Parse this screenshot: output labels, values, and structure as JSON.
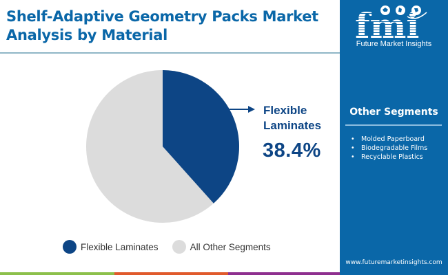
{
  "header": {
    "title": "Shelf-Adaptive Geometry Packs Market Analysis by Material"
  },
  "brand": {
    "logo_letters": "fmi",
    "name": "Future Market Insights",
    "url": "www.futuremarketinsights.com",
    "panel_color": "#0a67a8"
  },
  "side_panel": {
    "title": "Other Segments",
    "items": [
      "Molded Paperboard",
      "Biodegradable Films",
      "Recyclable Plastics"
    ]
  },
  "callout": {
    "label_line1": "Flexible",
    "label_line2": "Laminates",
    "value": "38.4%"
  },
  "legend": {
    "items": [
      {
        "label": "Flexible Laminates",
        "color": "#0d4585"
      },
      {
        "label": "All Other Segments",
        "color": "#dcdcdc"
      }
    ]
  },
  "bottom_strip": {
    "colors": [
      "#8cc04b",
      "#e05a2b",
      "#8e2f8f"
    ]
  },
  "chart_data": {
    "type": "pie",
    "title": "Shelf-Adaptive Geometry Packs Market Analysis by Material",
    "categories": [
      "Flexible Laminates",
      "All Other Segments"
    ],
    "values": [
      38.4,
      61.6
    ],
    "colors": [
      "#0d4585",
      "#dcdcdc"
    ],
    "annotations": [
      {
        "category": "Flexible Laminates",
        "text": "38.4%"
      }
    ],
    "start_angle_deg": 90,
    "direction": "clockwise",
    "legend_position": "bottom"
  }
}
